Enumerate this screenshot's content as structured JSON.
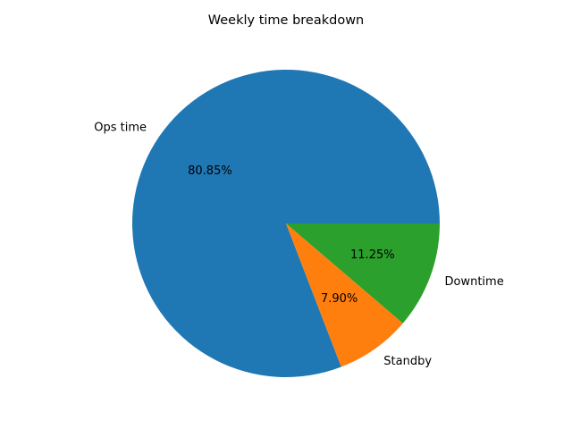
{
  "chart_data": {
    "type": "pie",
    "title": "Weekly time breakdown",
    "slices": [
      {
        "label": "Ops time",
        "value": 80.85,
        "pct_label": "80.85%",
        "color": "#1f77b4"
      },
      {
        "label": "Standby",
        "value": 7.9,
        "pct_label": "7.90%",
        "color": "#ff7f0e"
      },
      {
        "label": "Downtime",
        "value": 11.25,
        "pct_label": "11.25%",
        "color": "#2ca02c"
      }
    ],
    "start_angle_deg": 0,
    "direction": "counterclockwise",
    "legend": "none"
  }
}
